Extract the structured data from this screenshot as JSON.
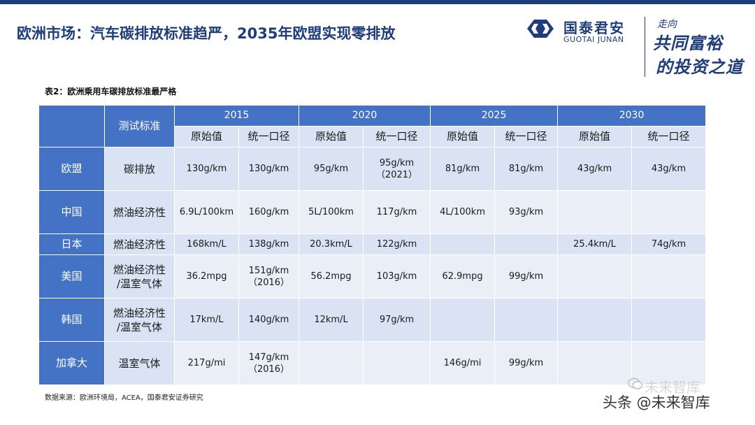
{
  "slide": {
    "title": "欧洲市场：汽车碳排放标准趋严，2035年欧盟实现零排放",
    "logo": {
      "name_cn": "国泰君安",
      "name_en": "GUOTAI JUNAN"
    },
    "slogan": {
      "line1": "走向",
      "line2": "共同富裕",
      "line3": "的投资之道"
    },
    "table_caption": "表2：欧洲乘用车碳排放标准最严格",
    "source": "数据来源：欧洲环境局，ACEA，国泰君安证券研究",
    "watermark": {
      "main": "头条 @未来智库",
      "faint": "未来智库"
    }
  },
  "table": {
    "header_corner": "测试标准",
    "years": [
      "2015",
      "2020",
      "2025",
      "2030"
    ],
    "subheaders": [
      "原始值",
      "统一口径",
      "原始值",
      "统一口径",
      "原始值",
      "统一口径",
      "原始值",
      "统一口径"
    ],
    "rows": [
      {
        "region": "欧盟",
        "standard": "碳排放",
        "values": [
          "130g/km",
          "130g/km",
          "95g/km",
          "95g/km\n（2021）",
          "81g/km",
          "81g/km",
          "43g/km",
          "43g/km"
        ]
      },
      {
        "region": "中国",
        "standard": "燃油经济性",
        "values": [
          "6.9L/100km",
          "160g/km",
          "5L/100km",
          "117g/km",
          "4L/100km",
          "93g/km",
          "",
          ""
        ]
      },
      {
        "region": "日本",
        "standard": "燃油经济性",
        "values": [
          "168km/L",
          "138g/km",
          "20.3km/L",
          "122g/km",
          "",
          "",
          "25.4km/L",
          "74g/km"
        ]
      },
      {
        "region": "美国",
        "standard": "燃油经济性\n/温室气体",
        "values": [
          "36.2mpg",
          "151g/km\n（2016）",
          "56.2mpg",
          "103g/km",
          "62.9mpg",
          "99g/km",
          "",
          ""
        ]
      },
      {
        "region": "韩国",
        "standard": "燃油经济性\n/温室气体",
        "values": [
          "17km/L",
          "140g/km",
          "12km/L",
          "97g/km",
          "",
          "",
          "",
          ""
        ]
      },
      {
        "region": "加拿大",
        "standard": "温室气体",
        "values": [
          "217g/mi",
          "147g/km\n（2016）",
          "",
          "",
          "146g/mi",
          "99g/km",
          "",
          ""
        ]
      }
    ]
  }
}
